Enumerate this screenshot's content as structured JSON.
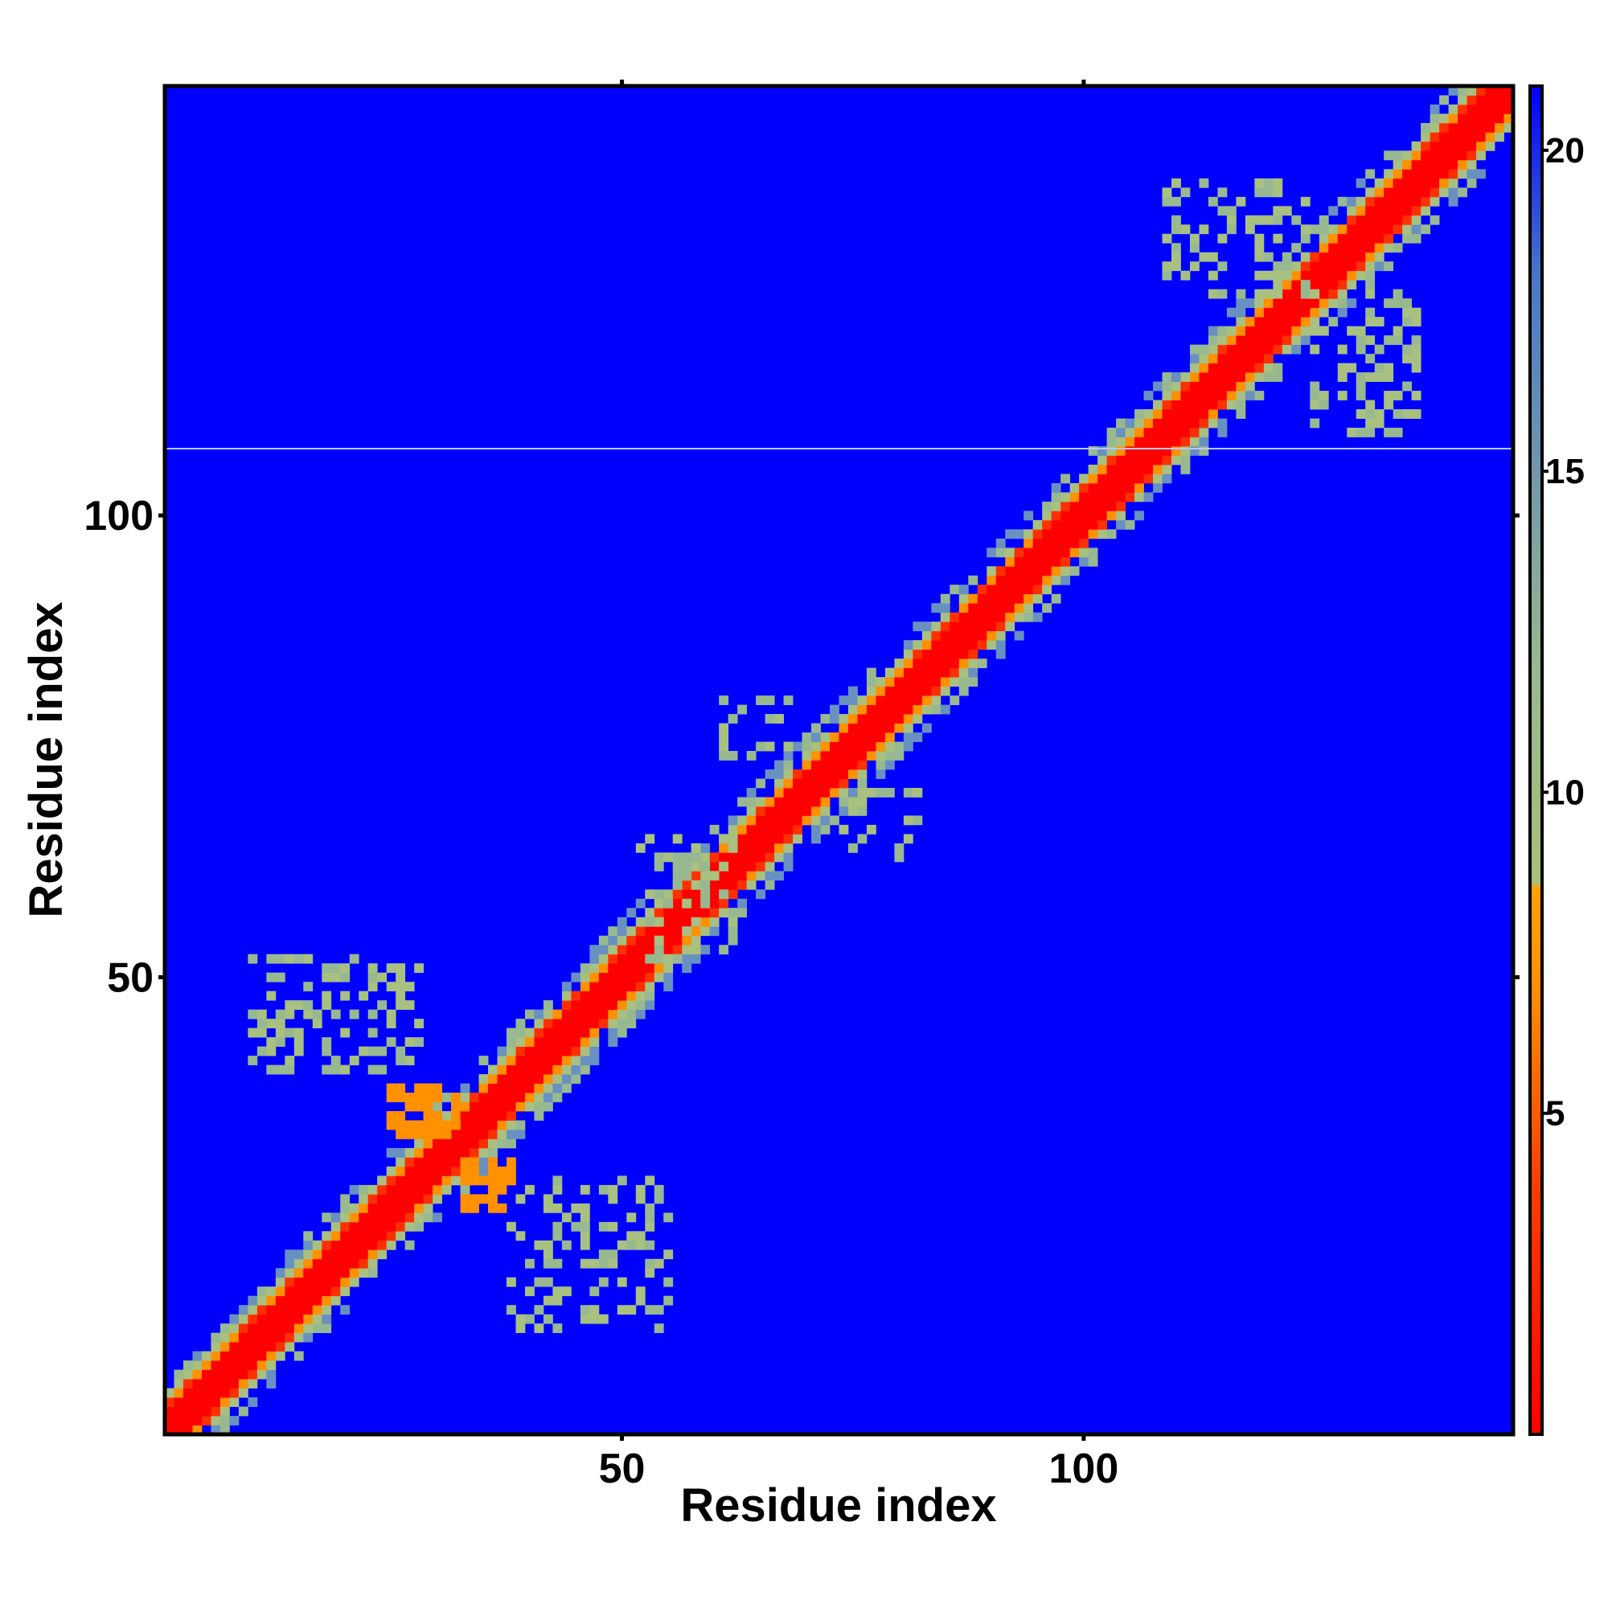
{
  "chart_data": {
    "type": "heatmap",
    "title": "",
    "xlabel": "Residue index",
    "ylabel": "Residue index",
    "n_residues": 146,
    "xlim": [
      1,
      146
    ],
    "ylim": [
      1,
      146
    ],
    "x_ticks": [
      50,
      100
    ],
    "y_ticks": [
      50,
      100
    ],
    "grid": false,
    "colorbar": {
      "range": [
        0,
        21
      ],
      "ticks": [
        5,
        10,
        15,
        20
      ],
      "stops": [
        {
          "value": 0,
          "color": "#ff0000"
        },
        {
          "value": 4,
          "color": "#ff4000"
        },
        {
          "value": 7,
          "color": "#ff9000"
        },
        {
          "value": 8.5,
          "color": "#ffa000"
        },
        {
          "value": 8.6,
          "color": "#a8c078"
        },
        {
          "value": 12,
          "color": "#98b890"
        },
        {
          "value": 18,
          "color": "#4a78c8"
        },
        {
          "value": 21,
          "color": "#0000ff"
        }
      ]
    },
    "background_color": "#0000ff",
    "contact_bands": [
      {
        "from": 1,
        "to": 146,
        "core_width": 2,
        "orange_width": 3,
        "green_width": 6
      }
    ],
    "off_diagonal_regions": [
      {
        "x": [
          10,
          28
        ],
        "y": [
          40,
          52
        ],
        "level": "green"
      },
      {
        "x": [
          38,
          55
        ],
        "y": [
          12,
          28
        ],
        "level": "green"
      },
      {
        "x": [
          25,
          32
        ],
        "y": [
          33,
          38
        ],
        "level": "orange"
      },
      {
        "x": [
          33,
          38
        ],
        "y": [
          25,
          30
        ],
        "level": "orange"
      },
      {
        "x": [
          52,
          62
        ],
        "y": [
          52,
          65
        ],
        "level": "green"
      },
      {
        "x": [
          61,
          68
        ],
        "y": [
          74,
          80
        ],
        "level": "green"
      },
      {
        "x": [
          74,
          82
        ],
        "y": [
          63,
          70
        ],
        "level": "green"
      },
      {
        "x": [
          109,
          124
        ],
        "y": [
          124,
          136
        ],
        "level": "green"
      },
      {
        "x": [
          125,
          136
        ],
        "y": [
          109,
          124
        ],
        "level": "green"
      }
    ]
  }
}
